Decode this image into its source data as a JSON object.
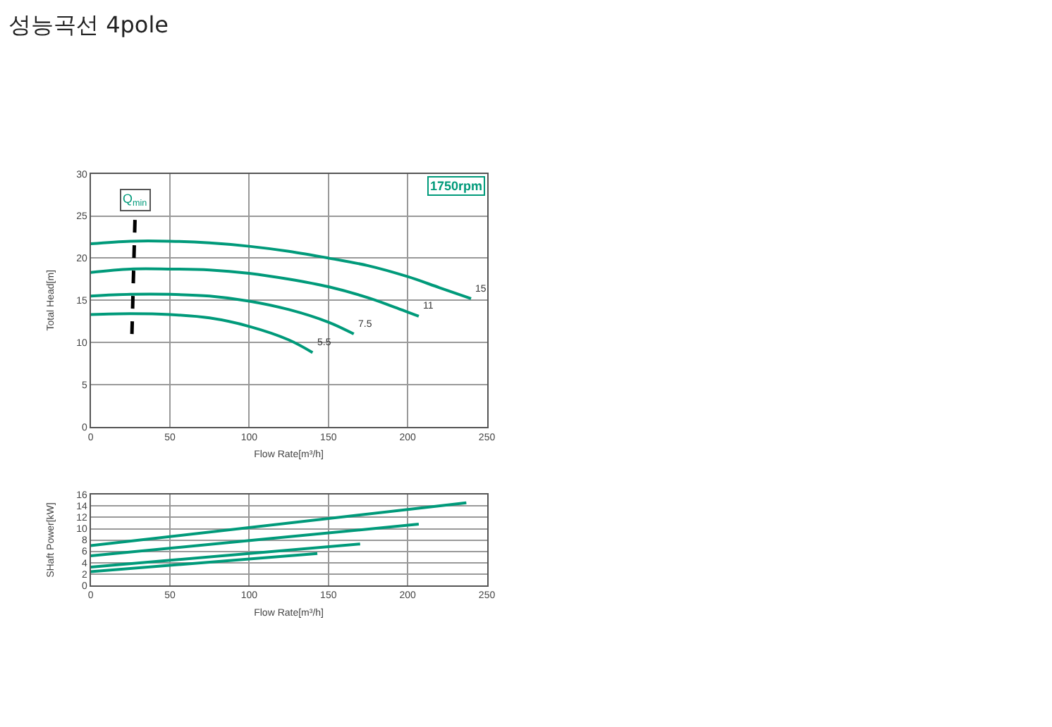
{
  "chart_data": [
    {
      "type": "line",
      "title": "성능곡선 4pole",
      "xlabel": "Flow Rate[m³/h]",
      "ylabel": "Total Head[m]",
      "xlim": [
        0,
        250
      ],
      "xticks": [
        0,
        50,
        100,
        150,
        200,
        250
      ],
      "ylim": [
        0,
        30
      ],
      "yticks": [
        0,
        5,
        10,
        15,
        20,
        25,
        30
      ],
      "grid": true,
      "legend": false,
      "marker": "none",
      "annotations": [
        "1750rpm"
      ],
      "series": [
        {
          "name": "15",
          "color": "#009a7a",
          "x": [
            0,
            25,
            50,
            75,
            100,
            125,
            150,
            175,
            200,
            220,
            240
          ],
          "values": [
            21.7,
            22.0,
            22.0,
            21.8,
            21.4,
            20.8,
            20.0,
            19.1,
            17.8,
            16.5,
            15.2
          ]
        },
        {
          "name": "11",
          "color": "#009a7a",
          "x": [
            0,
            25,
            50,
            75,
            100,
            125,
            150,
            175,
            190,
            207
          ],
          "values": [
            18.3,
            18.7,
            18.7,
            18.6,
            18.2,
            17.5,
            16.6,
            15.3,
            14.3,
            13.1
          ]
        },
        {
          "name": "7.5",
          "color": "#009a7a",
          "x": [
            0,
            25,
            50,
            75,
            100,
            125,
            150,
            166
          ],
          "values": [
            15.5,
            15.7,
            15.7,
            15.5,
            14.9,
            13.9,
            12.4,
            11.0
          ]
        },
        {
          "name": "5.5",
          "color": "#009a7a",
          "x": [
            0,
            25,
            50,
            75,
            100,
            125,
            140
          ],
          "values": [
            13.3,
            13.4,
            13.3,
            12.9,
            11.9,
            10.3,
            8.8
          ]
        },
        {
          "name": "Q$_{min}$",
          "color": "#000000",
          "line_style": "dashed",
          "x": [
            26,
            28
          ],
          "values": [
            11,
            25
          ]
        }
      ]
    },
    {
      "type": "line",
      "xlabel": "Flow Rate[m³/h]",
      "ylabel": "SHaft Power[kW]",
      "xlim": [
        0,
        250
      ],
      "xticks": [
        0,
        50,
        100,
        150,
        200,
        250
      ],
      "ylim": [
        0,
        16
      ],
      "yticks": [
        0,
        2,
        4,
        6,
        8,
        10,
        12,
        14,
        16
      ],
      "grid": true,
      "legend": false,
      "marker": "none",
      "series": [
        {
          "color": "#009a7a",
          "x": [
            0,
            237
          ],
          "values": [
            7.0,
            14.6
          ]
        },
        {
          "color": "#009a7a",
          "x": [
            0,
            207
          ],
          "values": [
            5.2,
            10.8
          ]
        },
        {
          "color": "#009a7a",
          "x": [
            0,
            170
          ],
          "values": [
            3.2,
            7.3
          ]
        },
        {
          "color": "#009a7a",
          "x": [
            0,
            143
          ],
          "values": [
            2.4,
            5.6
          ]
        }
      ]
    }
  ]
}
